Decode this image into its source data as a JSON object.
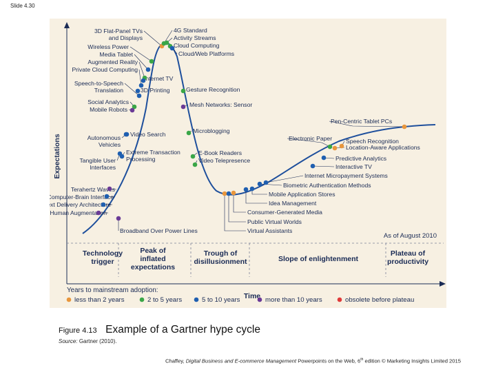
{
  "slide_label": "Slide 4.30",
  "diagram": {
    "y_axis_title": "Expectations",
    "x_axis_title": "Time",
    "as_of": "As of August 2010",
    "phases": [
      [
        "Technology",
        "trigger"
      ],
      [
        "Peak of",
        "inflated",
        "expectations"
      ],
      [
        "Trough of",
        "disillusionment"
      ],
      [
        "Slope of enlightenment"
      ],
      [
        "Plateau of",
        "productivity"
      ]
    ],
    "legend_title": "Years to mainstream adoption:",
    "legend": [
      {
        "label": "less than 2 years",
        "color": "#e8963c"
      },
      {
        "label": "2 to 5 years",
        "color": "#3aa647"
      },
      {
        "label": "5 to 10 years",
        "color": "#1f5fb0"
      },
      {
        "label": "more than 10 years",
        "color": "#6a3a96"
      },
      {
        "label": "obsolete before plateau",
        "color": "#e03a3a"
      }
    ],
    "labels": [
      [
        "3D Flat-Panel TVs",
        "and Displays"
      ],
      [
        "Wireless Power"
      ],
      [
        "Media Tablet"
      ],
      [
        "Augmented Reality"
      ],
      [
        "Private Cloud Computing"
      ],
      [
        "Speech-to-Speech",
        "Translation"
      ],
      [
        "Social Analytics"
      ],
      [
        "Mobile Robots"
      ],
      [
        "Autonomous",
        "Vehicles"
      ],
      [
        "Tangible User",
        "Interfaces"
      ],
      [
        "Terahertz Waves"
      ],
      [
        "Computer-Brain Interface"
      ],
      [
        "Context Delivery Architecture"
      ],
      [
        "Human Augmentation"
      ],
      [
        "Broadband Over Power Lines"
      ],
      [
        "Extreme Transaction",
        "Processing"
      ],
      [
        "Video Search"
      ],
      [
        "3D Printing"
      ],
      [
        "Internet TV"
      ],
      [
        "4G Standard"
      ],
      [
        "Activity Streams"
      ],
      [
        "Cloud Computing"
      ],
      [
        "Cloud/Web Platforms"
      ],
      [
        "Gesture Recognition"
      ],
      [
        "Mesh Networks: Sensor"
      ],
      [
        "Microblogging"
      ],
      [
        "E-Book Readers"
      ],
      [
        "Video Telepresence"
      ],
      [
        "Virtual Assistants"
      ],
      [
        "Public Virtual Worlds"
      ],
      [
        "Consumer-Generated Media"
      ],
      [
        "Idea Management"
      ],
      [
        "Mobile Application Stores"
      ],
      [
        "Biometric Authentication Methods"
      ],
      [
        "Internet Micropayment Systems"
      ],
      [
        "Interactive TV"
      ],
      [
        "Predictive Analytics"
      ],
      [
        "Electronic Paper"
      ],
      [
        "Location-Aware Applications"
      ],
      [
        "Speech Recognition"
      ],
      [
        "Pen-Centric Tablet PCs"
      ]
    ]
  },
  "caption": {
    "figure_number": "Figure 4.13",
    "title": "Example of a Gartner hype cycle",
    "source_label": "Source:",
    "source_text": "Gartner (2010)."
  },
  "footer": {
    "author": "Chaffey, ",
    "book": "Digital Business and E-commerce Management",
    "rest": " Powerpoints on the Web, 6",
    "edition_sup": "th",
    "tail": " edition © Marketing Insights Limited 2015"
  }
}
